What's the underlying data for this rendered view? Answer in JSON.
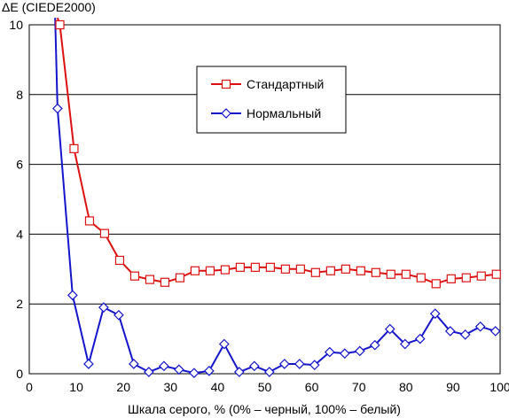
{
  "chart_data": {
    "type": "line",
    "title": "",
    "xlabel": "Шкала серого, % (0% – черный, 100% – белый)",
    "ylabel": "ΔE (CIEDE2000)",
    "xlim": [
      0,
      100
    ],
    "ylim": [
      0,
      10
    ],
    "xticks": [
      0,
      10,
      20,
      30,
      40,
      50,
      60,
      70,
      80,
      90,
      100
    ],
    "yticks": [
      0,
      2,
      4,
      6,
      8,
      10
    ],
    "grid": "horizontal",
    "legend_position": "upper-center",
    "series": [
      {
        "name": "Стандартный",
        "color": "#dd1111",
        "marker": "square",
        "x": [
          6.5,
          9.5,
          12.8,
          16,
          19.2,
          22.4,
          25.6,
          28.8,
          32,
          35.2,
          38.4,
          41.6,
          44.8,
          48,
          51.2,
          54.4,
          57.6,
          60.8,
          64,
          67.2,
          70.4,
          73.6,
          76.8,
          80,
          83.2,
          86.4,
          89.6,
          92.8,
          96,
          99.2
        ],
        "y": [
          10.0,
          6.45,
          4.38,
          4.02,
          3.25,
          2.8,
          2.7,
          2.62,
          2.75,
          2.95,
          2.95,
          2.98,
          3.05,
          3.05,
          3.05,
          3.0,
          3.0,
          2.9,
          2.95,
          3.0,
          2.95,
          2.9,
          2.85,
          2.85,
          2.75,
          2.58,
          2.72,
          2.75,
          2.8,
          2.85
        ]
      },
      {
        "name": "Нормальный",
        "color": "#1515cc",
        "marker": "diamond",
        "x": [
          6,
          9.2,
          12.6,
          15.8,
          19,
          22.2,
          25.4,
          28.6,
          31.8,
          35,
          38.2,
          41.4,
          44.6,
          47.8,
          51,
          54.2,
          57.4,
          60.6,
          63.8,
          67,
          70.2,
          73.4,
          76.6,
          79.8,
          83,
          86.2,
          89.4,
          92.6,
          95.8,
          99
        ],
        "y": [
          7.6,
          2.25,
          0.28,
          1.9,
          1.68,
          0.28,
          0.05,
          0.22,
          0.12,
          0.02,
          0.08,
          0.85,
          0.05,
          0.22,
          0.05,
          0.28,
          0.28,
          0.25,
          0.62,
          0.58,
          0.65,
          0.82,
          1.28,
          0.85,
          1.0,
          1.72,
          1.22,
          1.12,
          1.35,
          1.22
        ]
      }
    ],
    "overflow_lines": [
      {
        "series": 0,
        "x": [
          6.0,
          6.5
        ],
        "y": [
          10.2,
          10.0
        ]
      },
      {
        "series": 1,
        "x": [
          5.5,
          6.0
        ],
        "y": [
          10.2,
          7.6
        ]
      }
    ]
  }
}
